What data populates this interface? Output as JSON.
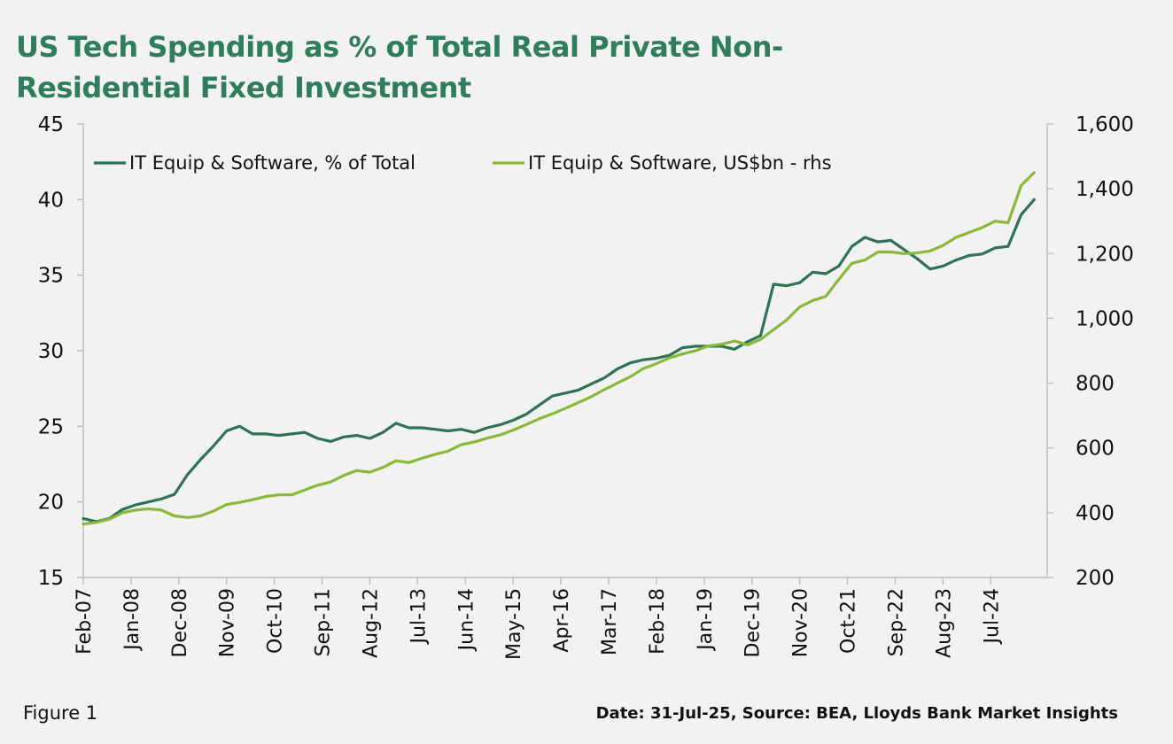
{
  "title": "US Tech Spending as % of Total Real Private Non-Residential Fixed Investment",
  "title_lines": [
    "US Tech Spending as % of Total Real Private Non-",
    "Residential Fixed Investment"
  ],
  "footer": {
    "figure_label": "Figure 1",
    "source": "Date: 31-Jul-25,  Source: BEA, Lloyds Bank Market Insights"
  },
  "colors": {
    "series_pct": "#2e7354",
    "series_usd": "#8ab83a",
    "title": "#2e7d5b",
    "axis": "#bfbfbf"
  },
  "chart_data": {
    "type": "line",
    "title": "US Tech Spending as % of Total Real Private Non-Residential Fixed Investment",
    "x_tick_labels": [
      "Feb-07",
      "Jan-08",
      "Dec-08",
      "Nov-09",
      "Oct-10",
      "Sep-11",
      "Aug-12",
      "Jul-13",
      "Jun-14",
      "May-15",
      "Apr-16",
      "Mar-17",
      "Feb-18",
      "Jan-19",
      "Dec-19",
      "Nov-20",
      "Oct-21",
      "Sep-22",
      "Aug-23",
      "Jul-24"
    ],
    "y_left": {
      "range": [
        15,
        45
      ],
      "ticks": [
        "15",
        "20",
        "25",
        "30",
        "35",
        "40",
        "45"
      ]
    },
    "y_right": {
      "range": [
        200,
        1600
      ],
      "ticks": [
        "200",
        "400",
        "600",
        "800",
        "1,000",
        "1,200",
        "1,400",
        "1,600"
      ]
    },
    "legend_placement": "top-left",
    "grid": false,
    "x_start": "2007-02",
    "x_step_quarters": 1,
    "series": [
      {
        "name": "IT Equip & Software, % of Total",
        "axis": "left",
        "values": [
          18.9,
          18.7,
          18.9,
          19.5,
          19.8,
          20.0,
          20.2,
          20.5,
          21.8,
          22.8,
          23.7,
          24.7,
          25.0,
          24.5,
          24.5,
          24.4,
          24.5,
          24.6,
          24.2,
          24.0,
          24.3,
          24.4,
          24.2,
          24.6,
          25.2,
          24.9,
          24.9,
          24.8,
          24.7,
          24.8,
          24.6,
          24.9,
          25.1,
          25.4,
          25.8,
          26.4,
          27.0,
          27.2,
          27.4,
          27.8,
          28.2,
          28.8,
          29.2,
          29.4,
          29.5,
          29.7,
          30.2,
          30.3,
          30.3,
          30.3,
          30.1,
          30.6,
          31.0,
          34.4,
          34.3,
          34.5,
          35.2,
          35.1,
          35.6,
          36.9,
          37.5,
          37.2,
          37.3,
          36.7,
          36.1,
          35.4,
          35.6,
          36.0,
          36.3,
          36.4,
          36.8,
          36.9,
          39.0,
          40.0
        ]
      },
      {
        "name": "IT Equip & Software, US$bn - rhs",
        "axis": "right",
        "values": [
          365,
          370,
          380,
          400,
          408,
          412,
          408,
          390,
          385,
          390,
          405,
          425,
          432,
          440,
          450,
          455,
          455,
          470,
          485,
          495,
          515,
          530,
          525,
          540,
          560,
          555,
          568,
          580,
          590,
          610,
          618,
          630,
          640,
          655,
          672,
          690,
          705,
          722,
          740,
          758,
          780,
          800,
          820,
          845,
          860,
          878,
          890,
          900,
          915,
          920,
          930,
          918,
          935,
          965,
          995,
          1035,
          1055,
          1068,
          1120,
          1170,
          1180,
          1205,
          1205,
          1200,
          1202,
          1208,
          1225,
          1250,
          1265,
          1280,
          1300,
          1295,
          1410,
          1450
        ]
      }
    ]
  }
}
